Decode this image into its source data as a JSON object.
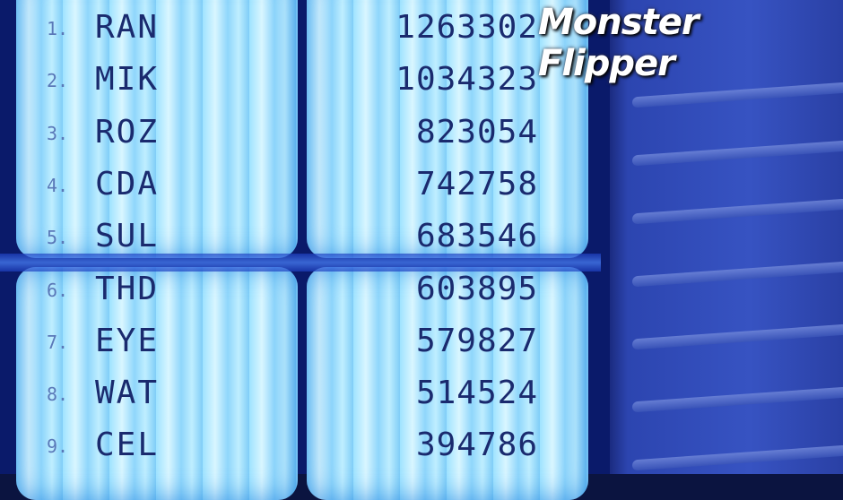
{
  "title": "Monster Flipper",
  "leaderboard": [
    {
      "rank": "1.",
      "name": "RAN",
      "score": "1263302"
    },
    {
      "rank": "2.",
      "name": "MIK",
      "score": "1034323"
    },
    {
      "rank": "3.",
      "name": "ROZ",
      "score": "823054"
    },
    {
      "rank": "4.",
      "name": "CDA",
      "score": "742758"
    },
    {
      "rank": "5.",
      "name": "SUL",
      "score": "683546"
    },
    {
      "rank": "6.",
      "name": "THD",
      "score": "603895"
    },
    {
      "rank": "7.",
      "name": "EYE",
      "score": "579827"
    },
    {
      "rank": "8.",
      "name": "WAT",
      "score": "514524"
    },
    {
      "rank": "9.",
      "name": "CEL",
      "score": "394786"
    }
  ],
  "colors": {
    "text": "#1a2a6e",
    "panel": "#9fe3ff",
    "shutter": "#2c45b0"
  }
}
